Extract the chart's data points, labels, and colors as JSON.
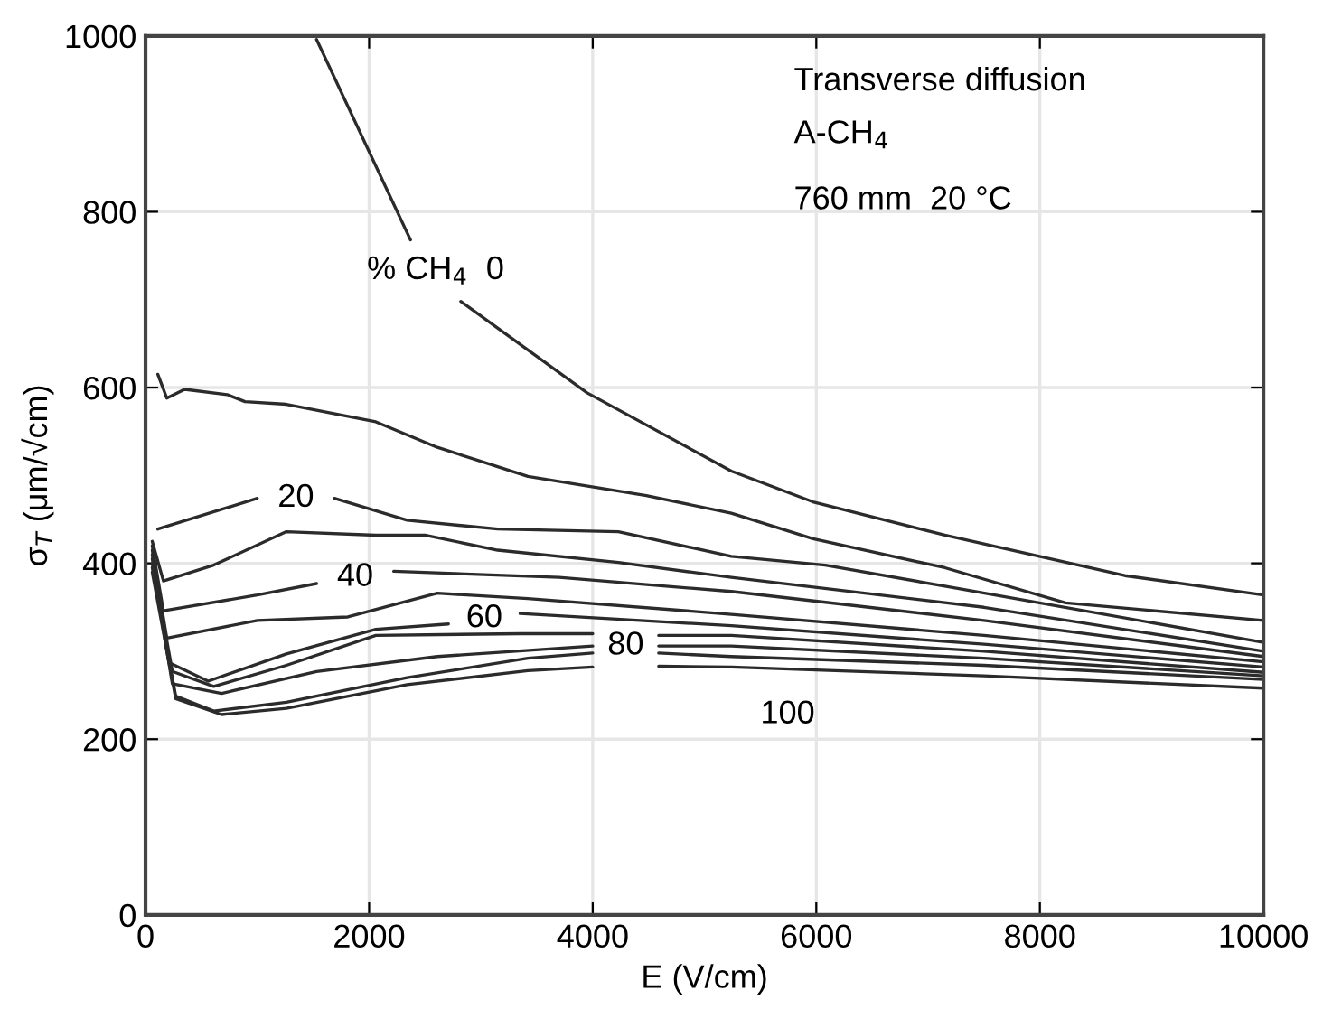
{
  "chart_data": {
    "type": "line",
    "xlabel": "E (V/cm)",
    "ylabel": "σ$_{T}$ (μm/√cm)",
    "xlim": [
      0,
      10000
    ],
    "xticks": [
      0,
      2000,
      4000,
      6000,
      8000,
      10000
    ],
    "ylim": [
      0,
      1000
    ],
    "yticks": [
      0,
      200,
      400,
      600,
      800,
      1000
    ],
    "grid": true,
    "line_style": "solid",
    "marker": "none",
    "series": [
      {
        "name": "% CH$_{4}$  0",
        "color": "#2b2b2b",
        "x": [
          1530,
          2370,
          2600,
          2820,
          3950,
          5240,
          5970,
          7150,
          8760,
          10000
        ],
        "values": [
          996,
          768,
          null,
          698,
          594,
          505,
          470,
          432,
          386,
          364
        ]
      },
      {
        "color": "#2b2b2b",
        "x": [
          110,
          190,
          350,
          730,
          890,
          1260,
          2060,
          2610,
          3420,
          4480,
          5240,
          5970,
          7150,
          8230,
          10000
        ],
        "values": [
          615,
          588,
          598,
          592,
          584,
          581,
          561,
          532,
          499,
          477,
          457,
          428,
          395,
          355,
          335
        ]
      },
      {
        "name": "20",
        "color": "#2b2b2b",
        "x": [
          110,
          1000,
          1340,
          1690,
          2340,
          3150,
          4230,
          5240,
          6080,
          7150,
          10000
        ],
        "values": [
          439,
          474,
          null,
          474,
          449,
          439,
          436,
          408,
          398,
          374,
          310
        ]
      },
      {
        "color": "#2b2b2b",
        "x": [
          60,
          160,
          610,
          1260,
          2060,
          2500,
          3150,
          4230,
          5240,
          7500,
          10000
        ],
        "values": [
          425,
          380,
          398,
          436,
          432,
          432,
          415,
          401,
          384,
          350,
          300
        ]
      },
      {
        "name": "40",
        "color": "#2b2b2b",
        "x": [
          60,
          160,
          1000,
          1530,
          1990,
          2220,
          3700,
          5240,
          7500,
          10000
        ],
        "values": [
          420,
          346,
          364,
          377,
          null,
          391,
          384,
          368,
          335,
          294
        ]
      },
      {
        "color": "#2b2b2b",
        "x": [
          60,
          190,
          1000,
          1810,
          2610,
          3420,
          5240,
          7500,
          10000
        ],
        "values": [
          415,
          315,
          335,
          339,
          366,
          360,
          342,
          318,
          288
        ]
      },
      {
        "name": "60",
        "color": "#2b2b2b",
        "x": [
          60,
          210,
          560,
          1260,
          2060,
          2710,
          3030,
          3350,
          5240,
          7500,
          10000
        ],
        "values": [
          410,
          287,
          266,
          297,
          325,
          331,
          null,
          343,
          329,
          308,
          282
        ]
      },
      {
        "color": "#2b2b2b",
        "x": [
          60,
          240,
          610,
          1260,
          2060,
          3350,
          4000,
          4300,
          4590,
          5240,
          7500,
          10000
        ],
        "values": [
          405,
          277,
          260,
          284,
          318,
          320,
          320,
          null,
          318,
          318,
          300,
          276
        ]
      },
      {
        "name": "80",
        "color": "#2b2b2b",
        "x": [
          60,
          240,
          680,
          1530,
          2610,
          4000,
          4360,
          4590,
          5240,
          7500,
          10000
        ],
        "values": [
          400,
          263,
          252,
          277,
          294,
          306,
          null,
          306,
          306,
          292,
          272
        ]
      },
      {
        "color": "#2b2b2b",
        "x": [
          60,
          270,
          610,
          1260,
          2340,
          3420,
          4000,
          4300,
          4590,
          5240,
          7500,
          10000
        ],
        "values": [
          395,
          249,
          232,
          242,
          270,
          292,
          298,
          null,
          298,
          294,
          284,
          268
        ]
      },
      {
        "color": "#2b2b2b",
        "x": [
          60,
          270,
          680,
          1260,
          2340,
          3420,
          4000,
          4300,
          4590,
          5240,
          7500,
          10000
        ],
        "values": [
          390,
          246,
          228,
          235,
          262,
          278,
          282,
          null,
          283,
          282,
          272,
          258
        ]
      }
    ],
    "annotations": [
      "Transverse diffusion",
      "A-CH$_{4}$",
      "760 mm  20 °C",
      "100"
    ]
  }
}
